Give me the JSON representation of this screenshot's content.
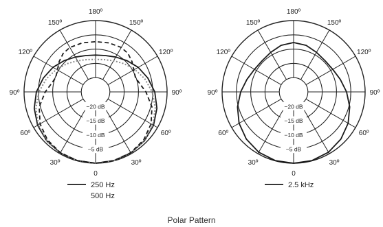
{
  "chart_data": [
    {
      "type": "polar",
      "angle_labels": [
        "0",
        "30º",
        "60º",
        "90º",
        "120º",
        "150º",
        "180º",
        "150º",
        "120º",
        "90º",
        "60º",
        "30º"
      ],
      "ring_labels": [
        "−20 dB",
        "−15 dB",
        "−10 dB",
        "−5 dB"
      ],
      "rlim": [
        -25,
        0
      ],
      "legend": [
        "250 Hz",
        "500 Hz"
      ],
      "series": [
        {
          "name": "250 Hz",
          "style": "solid",
          "color": "#1a1a1a",
          "angles": [
            0,
            15,
            30,
            45,
            60,
            75,
            90,
            105,
            120,
            135,
            150,
            165,
            180
          ],
          "values": [
            0,
            -0.1,
            -0.3,
            -0.8,
            -1.6,
            -2.8,
            -4.3,
            -6.1,
            -7.8,
            -9.5,
            -10.9,
            -11.8,
            -12.1
          ]
        },
        {
          "name": "500 Hz",
          "style": "dotted",
          "color": "#8a8a8a",
          "angles": [
            0,
            15,
            30,
            45,
            60,
            75,
            90,
            105,
            120,
            135,
            150,
            165,
            180
          ],
          "values": [
            0,
            -0.1,
            -0.3,
            -0.9,
            -1.9,
            -3.4,
            -5.2,
            -7.2,
            -9.2,
            -11.0,
            -12.4,
            -13.3,
            -13.6
          ]
        },
        {
          "style": "dashed",
          "color": "#1a1a1a",
          "angles": [
            0,
            15,
            30,
            45,
            60,
            75,
            90,
            100,
            110,
            120,
            130,
            140,
            150,
            165,
            180
          ],
          "values": [
            0,
            -0.1,
            -0.4,
            -1.2,
            -2.6,
            -4.6,
            -7.4,
            -9.2,
            -10.2,
            -9.6,
            -8.4,
            -7.4,
            -7.0,
            -7.2,
            -7.4
          ]
        }
      ]
    },
    {
      "type": "polar",
      "angle_labels": [
        "0",
        "30º",
        "60º",
        "90º",
        "120º",
        "150º",
        "180º",
        "150º",
        "120º",
        "90º",
        "60º",
        "30º"
      ],
      "ring_labels": [
        "−20 dB",
        "−15 dB",
        "−10 dB",
        "−5 dB"
      ],
      "rlim": [
        -25,
        0
      ],
      "legend": [
        "2.5 kHz"
      ],
      "series": [
        {
          "name": "2.5 kHz",
          "style": "solid",
          "color": "#1a1a1a",
          "angles": [
            0,
            15,
            30,
            45,
            60,
            75,
            90,
            105,
            120,
            135,
            150,
            165,
            180
          ],
          "values": [
            0,
            -0.1,
            -0.6,
            -1.6,
            -3.0,
            -4.7,
            -6.5,
            -8.1,
            -9.2,
            -9.5,
            -9.0,
            -8.1,
            -7.7
          ]
        }
      ]
    }
  ],
  "caption": "Polar Pattern"
}
